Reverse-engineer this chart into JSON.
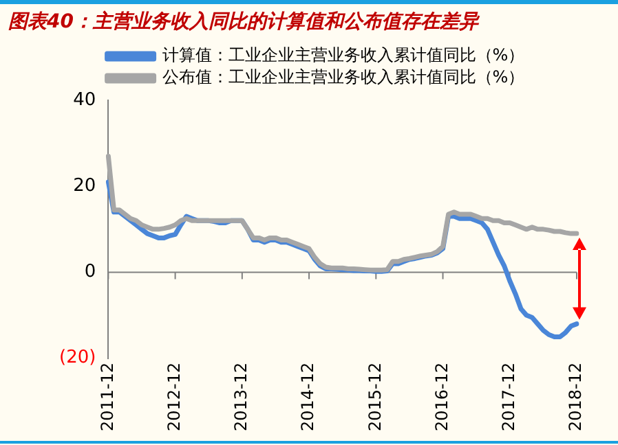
{
  "chart_data": {
    "type": "line",
    "title": "图表40：主营业务收入同比的计算值和公布值存在差异",
    "categories": [
      "2011-12",
      null,
      null,
      null,
      null,
      null,
      null,
      null,
      null,
      null,
      null,
      null,
      "2012-12",
      null,
      null,
      null,
      null,
      null,
      null,
      null,
      null,
      null,
      null,
      null,
      "2013-12",
      null,
      null,
      null,
      null,
      null,
      null,
      null,
      null,
      null,
      null,
      null,
      "2014-12",
      null,
      null,
      null,
      null,
      null,
      null,
      null,
      null,
      null,
      null,
      null,
      "2015-12",
      null,
      null,
      null,
      null,
      null,
      null,
      null,
      null,
      null,
      null,
      null,
      "2016-12",
      null,
      null,
      null,
      null,
      null,
      null,
      null,
      null,
      null,
      null,
      null,
      "2017-12",
      null,
      null,
      null,
      null,
      null,
      null,
      null,
      null,
      null,
      null,
      null,
      "2018-12"
    ],
    "series": [
      {
        "name": "计算值：工业企业主营业务收入累计值同比（%）",
        "color": "#4a86d8",
        "values": [
          21,
          14,
          14,
          13,
          12,
          11,
          10,
          9,
          8.5,
          8,
          8,
          8.5,
          8.8,
          11,
          13,
          12.5,
          12,
          12,
          12,
          11.8,
          11.5,
          11.5,
          12,
          12,
          12,
          10,
          7.5,
          7.5,
          7,
          7.5,
          7.5,
          7,
          7,
          6.5,
          6,
          5.5,
          5,
          3,
          1.5,
          0.8,
          0.8,
          0.7,
          0.6,
          0.5,
          0.4,
          0.4,
          0.3,
          0.3,
          0.2,
          0.2,
          0.3,
          2,
          2,
          2.5,
          3,
          3.2,
          3.5,
          3.8,
          4,
          4.5,
          5.5,
          13,
          13,
          12.5,
          12.5,
          12.5,
          12,
          11.5,
          10,
          7,
          4,
          1.5,
          -2,
          -5,
          -8.5,
          -10,
          -10.5,
          -12,
          -13.5,
          -14.5,
          -15,
          -15,
          -14,
          -12.5,
          -12
        ]
      },
      {
        "name": "公布值：工业企业主营业务收入累计值同比（%）",
        "color": "#a6a6a6",
        "values": [
          27,
          14.5,
          14.5,
          13.5,
          12.5,
          12,
          11,
          10.5,
          10,
          10,
          10.2,
          10.5,
          11,
          12,
          12.5,
          12,
          12,
          12,
          12,
          12,
          12,
          12,
          12,
          12,
          12,
          10,
          8,
          8,
          7.5,
          8,
          8,
          7.5,
          7.5,
          7,
          6.5,
          6,
          5.5,
          3.5,
          2,
          1.2,
          1,
          1,
          1,
          0.8,
          0.8,
          0.7,
          0.6,
          0.5,
          0.5,
          0.5,
          0.6,
          2.5,
          2.5,
          3,
          3.2,
          3.5,
          3.8,
          4,
          4.2,
          4.8,
          6,
          13.5,
          14,
          13.5,
          13.5,
          13.5,
          13,
          12.5,
          12.5,
          12,
          12,
          11.5,
          11.5,
          11,
          10.5,
          10,
          10.5,
          10,
          10,
          9.8,
          9.5,
          9.5,
          9.2,
          9,
          9
        ]
      }
    ],
    "ylim": [
      -20,
      40
    ],
    "yticks": [
      {
        "value": -20,
        "label": "(20)"
      },
      0,
      20,
      40
    ],
    "ref_lines": [
      {
        "axis": "y",
        "value": 0,
        "color": "#808080"
      }
    ],
    "grid": false,
    "legend": "top",
    "marker": "none",
    "line_style": "solid"
  }
}
